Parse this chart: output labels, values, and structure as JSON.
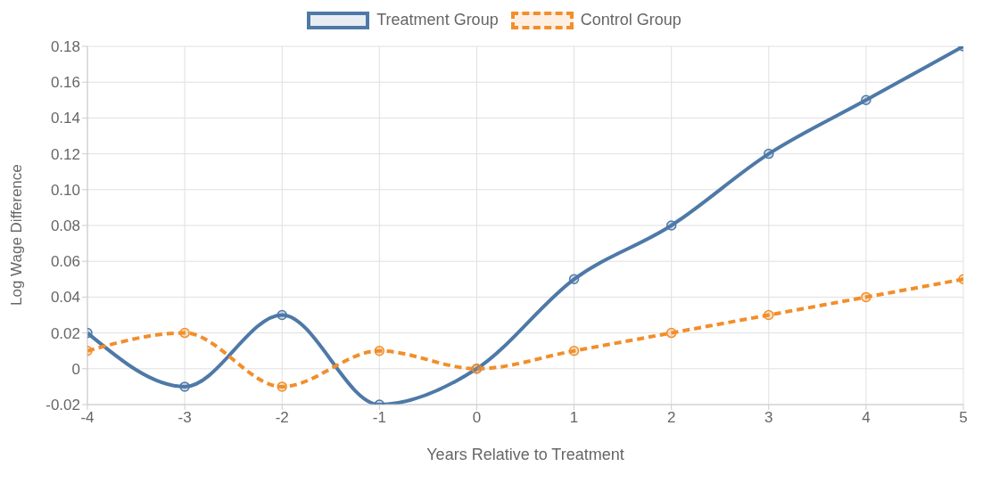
{
  "chart_data": {
    "type": "line",
    "xlabel": "Years Relative to Treatment",
    "ylabel": "Log Wage Difference",
    "x": [
      -4,
      -3,
      -2,
      -1,
      0,
      1,
      2,
      3,
      4,
      5
    ],
    "series": [
      {
        "name": "Treatment Group",
        "color": "#4e79a7",
        "line_style": "solid",
        "values": [
          0.02,
          -0.01,
          0.03,
          -0.02,
          0,
          0.05,
          0.08,
          0.12,
          0.15,
          0.18
        ]
      },
      {
        "name": "Control Group",
        "color": "#f28e2b",
        "line_style": "dashed",
        "values": [
          0.01,
          0.02,
          -0.01,
          0.01,
          0,
          0.01,
          0.02,
          0.03,
          0.04,
          0.05
        ]
      }
    ],
    "xlim": [
      -4,
      5
    ],
    "xticks": [
      -4,
      -3,
      -2,
      -1,
      0,
      1,
      2,
      3,
      4,
      5
    ],
    "ylim": [
      -0.02,
      0.18
    ],
    "yticks": [
      -0.02,
      0,
      0.02,
      0.04,
      0.06,
      0.08,
      {
        "value": 0.1,
        "label": "0.10"
      },
      0.12,
      0.14,
      0.16,
      0.18
    ],
    "grid": true,
    "legend": "top",
    "marker": "circle"
  }
}
